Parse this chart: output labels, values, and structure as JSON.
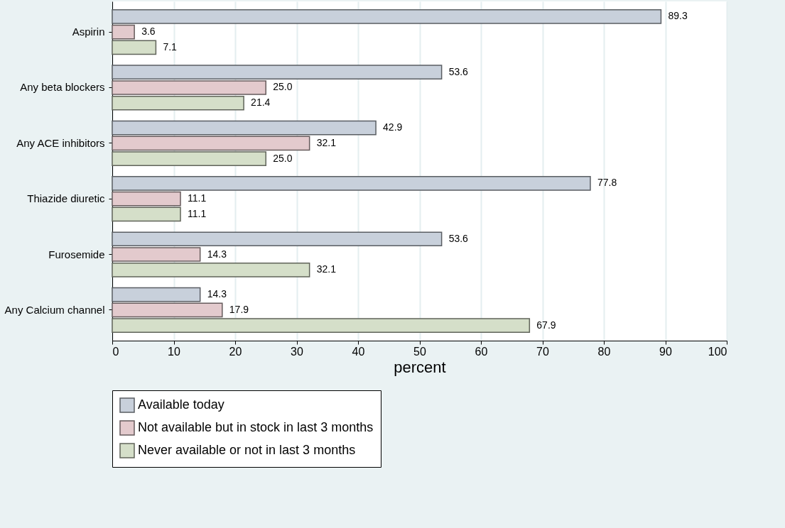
{
  "chart_data": {
    "type": "bar",
    "orientation": "horizontal",
    "xlabel": "percent",
    "categories": [
      "Aspirin",
      "Any beta blockers",
      "Any ACE inhibitors",
      "Thiazide diuretic",
      "Furosemide",
      "Any Calcium channel"
    ],
    "series": [
      {
        "name": "Available today",
        "color": "#c8d0db",
        "values": [
          89.3,
          53.6,
          42.9,
          77.8,
          53.6,
          14.3
        ],
        "value_labels": [
          "89.3",
          "53.6",
          "42.9",
          "77.8",
          "53.6",
          "14.3"
        ]
      },
      {
        "name": "Not available but in stock in last 3 months",
        "color": "#e3cacd",
        "values": [
          3.6,
          25.0,
          32.1,
          11.1,
          14.3,
          17.9
        ],
        "value_labels": [
          "3.6",
          "25.0",
          "32.1",
          "11.1",
          "14.3",
          "17.9"
        ]
      },
      {
        "name": "Never available or not in last 3 months",
        "color": "#d5dfc9",
        "values": [
          7.1,
          21.4,
          25.0,
          11.1,
          32.1,
          67.9
        ],
        "value_labels": [
          "7.1",
          "21.4",
          "25.0",
          "11.1",
          "32.1",
          "67.9"
        ]
      }
    ],
    "xlim": [
      0,
      100
    ],
    "xticks": [
      0,
      10,
      20,
      30,
      40,
      50,
      60,
      70,
      80,
      90,
      100
    ],
    "grid": "x",
    "legend": "bottom"
  }
}
